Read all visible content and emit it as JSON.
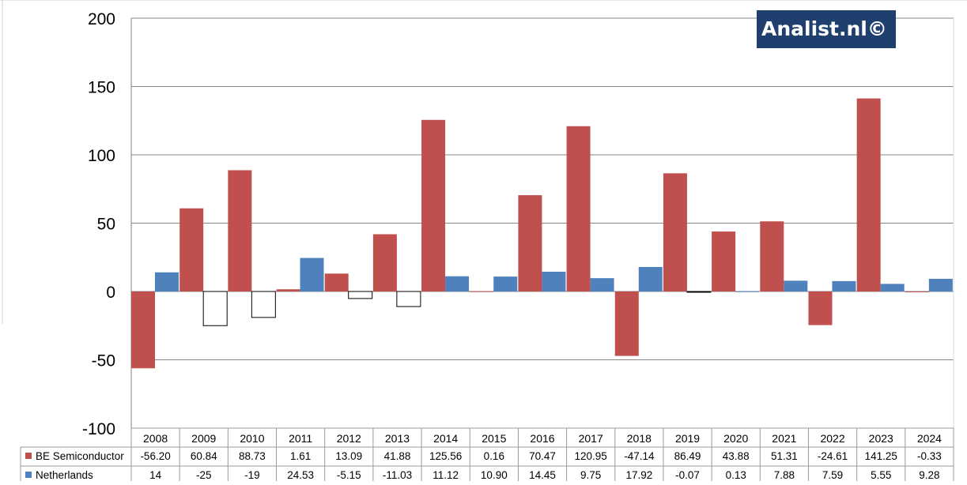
{
  "chart_data": {
    "type": "bar",
    "categories": [
      "2008",
      "2009",
      "2010",
      "2011",
      "2012",
      "2013",
      "2014",
      "2015",
      "2016",
      "2017",
      "2018",
      "2019",
      "2020",
      "2021",
      "2022",
      "2023",
      "2024"
    ],
    "series": [
      {
        "name": "BE Semiconductor",
        "color": "#c0504d",
        "values": [
          -56.2,
          60.84,
          88.73,
          1.61,
          13.09,
          41.88,
          125.56,
          0.16,
          70.47,
          120.95,
          -47.14,
          86.49,
          43.88,
          51.31,
          -24.61,
          141.25,
          -0.33
        ],
        "labels": [
          "-56.20",
          "60.84",
          "88.73",
          "1.61",
          "13.09",
          "41.88",
          "125.56",
          "0.16",
          "70.47",
          "120.95",
          "-47.14",
          "86.49",
          "43.88",
          "51.31",
          "-24.61",
          "141.25",
          "-0.33"
        ]
      },
      {
        "name": "Netherlands",
        "color": "#4f81bd",
        "negative_style": "white fill, black outline",
        "values": [
          14,
          -25,
          -19,
          24.53,
          -5.15,
          -11.03,
          11.12,
          10.9,
          14.45,
          9.75,
          17.92,
          -0.07,
          0.13,
          7.88,
          7.59,
          5.55,
          9.28
        ],
        "labels": [
          "14",
          "-25",
          "-19",
          "24.53",
          "-5.15",
          "-11.03",
          "11.12",
          "10.90",
          "14.45",
          "9.75",
          "17.92",
          "-0.07",
          "0.13",
          "7.88",
          "7.59",
          "5.55",
          "9.28"
        ]
      }
    ],
    "ylim": [
      -100,
      200
    ],
    "yticks": [
      "200",
      "150",
      "100",
      "50",
      "0",
      "-50",
      "-100"
    ],
    "grid": true,
    "legend": "data table below chart",
    "watermark": "Analist.nl©"
  }
}
